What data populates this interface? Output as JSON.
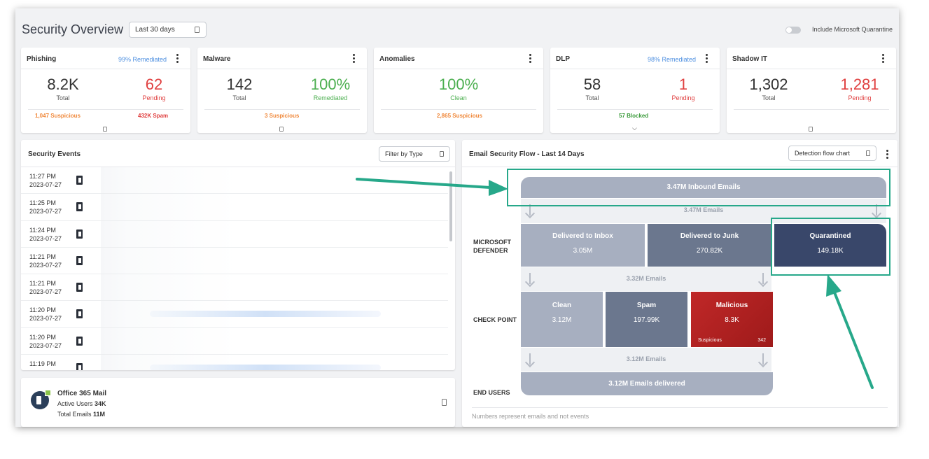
{
  "header": {
    "title": "Security Overview",
    "date_range": "Last 30 days",
    "toggle_label": "Include Microsoft Quarantine"
  },
  "cards": {
    "phishing": {
      "title": "Phishing",
      "remediated": "99% Remediated",
      "total": "8.2K",
      "total_label": "Total",
      "pending": "62",
      "pending_label": "Pending",
      "suspicious": "1,047  Suspicious",
      "spam": "432K  Spam"
    },
    "malware": {
      "title": "Malware",
      "total": "142",
      "total_label": "Total",
      "remediated_value": "100%",
      "remediated_label": "Remediated",
      "suspicious": "3  Suspicious"
    },
    "anomalies": {
      "title": "Anomalies",
      "clean_value": "100%",
      "clean_label": "Clean",
      "suspicious": "2,865 Suspicious"
    },
    "dlp": {
      "title": "DLP",
      "remediated": "98% Remediated",
      "total": "58",
      "total_label": "Total",
      "pending": "1",
      "pending_label": "Pending",
      "blocked": "57  Blocked"
    },
    "shadow_it": {
      "title": "Shadow IT",
      "total": "1,302",
      "total_label": "Total",
      "pending": "1,281",
      "pending_label": "Pending"
    }
  },
  "events": {
    "title": "Security Events",
    "filter_label": "Filter by Type",
    "rows": [
      {
        "time": "11:27 PM",
        "date": "2023-07-27"
      },
      {
        "time": "11:25 PM",
        "date": "2023-07-27"
      },
      {
        "time": "11:24 PM",
        "date": "2023-07-27"
      },
      {
        "time": "11:21 PM",
        "date": "2023-07-27"
      },
      {
        "time": "11:21 PM",
        "date": "2023-07-27"
      },
      {
        "time": "11:20 PM",
        "date": "2023-07-27"
      },
      {
        "time": "11:20 PM",
        "date": "2023-07-27"
      },
      {
        "time": "11:19 PM",
        "date": ""
      }
    ]
  },
  "office365": {
    "name": "Office 365 Mail",
    "active_users_label": "Active Users",
    "active_users": "34K",
    "total_emails_label": "Total Emails",
    "total_emails": "11M"
  },
  "flow": {
    "title": "Email Security Flow - Last 14 Days",
    "chart_select": "Detection flow chart",
    "inbound": "3.47M Inbound Emails",
    "inbound_strip": "3.47M Emails",
    "row_defender": [
      "MICROSOFT",
      "DEFENDER"
    ],
    "row_checkpoint": "CHECK POINT",
    "row_endusers": "END USERS",
    "inbox": {
      "label": "Delivered to Inbox",
      "value": "3.05M"
    },
    "junk": {
      "label": "Delivered to Junk",
      "value": "270.82K"
    },
    "quarantined": {
      "label": "Quarantined",
      "value": "149.18K"
    },
    "strip2": "3.32M Emails",
    "clean": {
      "label": "Clean",
      "value": "3.12M"
    },
    "spam": {
      "label": "Spam",
      "value": "197.99K"
    },
    "malicious": {
      "label": "Malicious",
      "value": "8.3K",
      "suspicious_label": "Suspicious",
      "suspicious_value": "342"
    },
    "strip3": "3.12M Emails",
    "delivered": "3.12M Emails delivered",
    "note": "Numbers represent emails and not events"
  },
  "colors": {
    "highlight": "#27a88a",
    "accent_blue": "#4d8fe0",
    "pending_red": "#e04040",
    "success_green": "#4caf50"
  }
}
